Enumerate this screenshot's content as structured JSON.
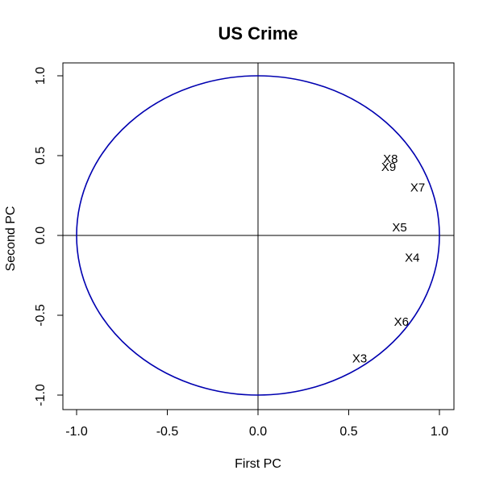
{
  "chart_data": {
    "type": "scatter",
    "title": "US Crime",
    "xlabel": "First PC",
    "ylabel": "Second PC",
    "xlim": [
      -1.0,
      1.0
    ],
    "ylim": [
      -1.0,
      1.0
    ],
    "xticks": [
      "-1.0",
      "-0.5",
      "0.0",
      "0.5",
      "1.0"
    ],
    "yticks": [
      "-1.0",
      "-0.5",
      "0.0",
      "0.5",
      "1.0"
    ],
    "xtick_values": [
      -1.0,
      -0.5,
      0.0,
      0.5,
      1.0
    ],
    "ytick_values": [
      -1.0,
      -0.5,
      0.0,
      0.5,
      1.0
    ],
    "unit_circle": true,
    "circle_color": "#0000B0",
    "reference_lines": [
      0,
      0
    ],
    "points": [
      {
        "label": "X8",
        "x": 0.73,
        "y": 0.48
      },
      {
        "label": "X9",
        "x": 0.72,
        "y": 0.43
      },
      {
        "label": "X7",
        "x": 0.88,
        "y": 0.3
      },
      {
        "label": "X5",
        "x": 0.78,
        "y": 0.05
      },
      {
        "label": "X4",
        "x": 0.85,
        "y": -0.14
      },
      {
        "label": "X6",
        "x": 0.79,
        "y": -0.54
      },
      {
        "label": "X3",
        "x": 0.56,
        "y": -0.77
      }
    ]
  }
}
